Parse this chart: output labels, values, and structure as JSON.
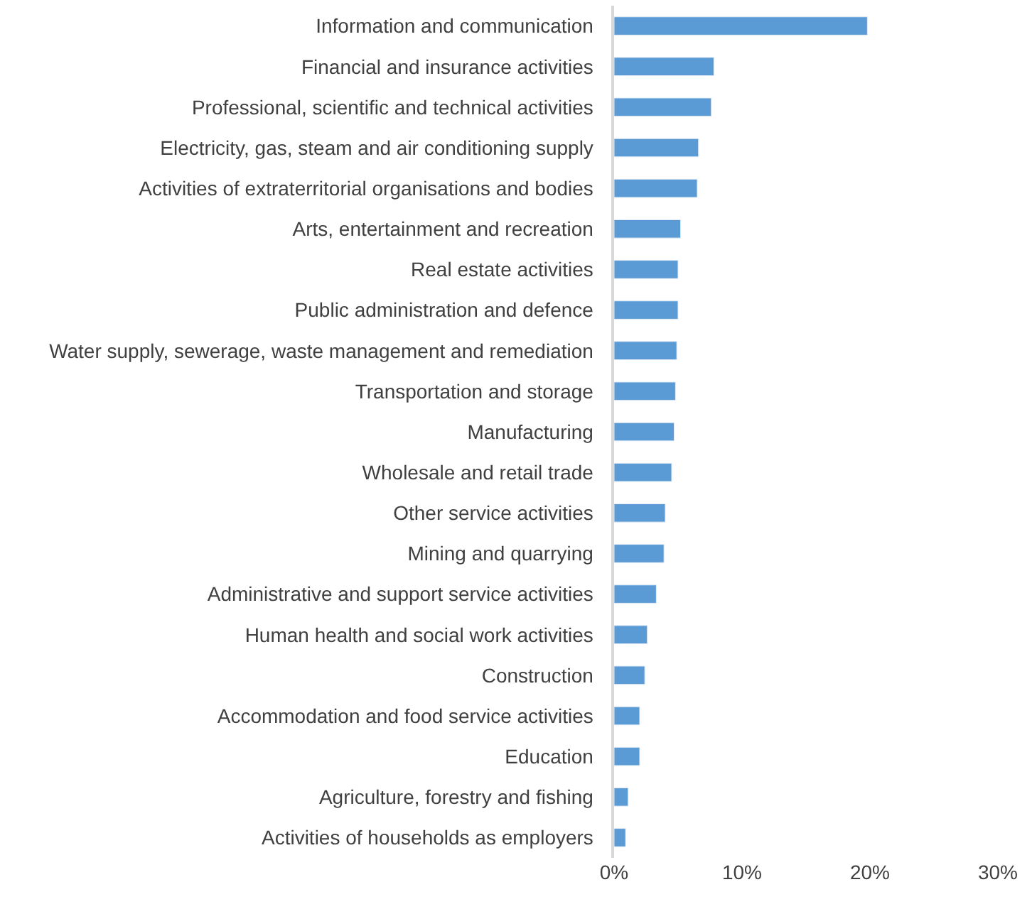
{
  "chart_data": {
    "type": "bar",
    "orientation": "horizontal",
    "categories": [
      "Information and communication",
      "Financial and insurance activities",
      "Professional, scientific and technical activities",
      "Electricity, gas, steam and air conditioning supply",
      "Activities of extraterritorial organisations and bodies",
      "Arts, entertainment and recreation",
      "Real estate activities",
      "Public administration and defence",
      "Water supply, sewerage, waste management and remediation",
      "Transportation and storage",
      "Manufacturing",
      "Wholesale and retail trade",
      "Other service activities",
      "Mining and quarrying",
      "Administrative and support service activities",
      "Human health and social work activities",
      "Construction",
      "Accommodation and food service activities",
      "Education",
      "Agriculture, forestry and fishing",
      "Activities of households as employers"
    ],
    "values": [
      19.8,
      7.8,
      7.6,
      6.6,
      6.5,
      5.2,
      5.0,
      5.0,
      4.9,
      4.8,
      4.7,
      4.5,
      4.0,
      3.9,
      3.3,
      2.6,
      2.4,
      2.0,
      2.0,
      1.1,
      0.9
    ],
    "color": "#5b9bd5",
    "xlim": [
      0,
      30
    ],
    "xticks": [
      {
        "value": 0,
        "label": "0%"
      },
      {
        "value": 10,
        "label": "10%"
      },
      {
        "value": 20,
        "label": "20%"
      },
      {
        "value": 30,
        "label": "30%"
      }
    ]
  }
}
